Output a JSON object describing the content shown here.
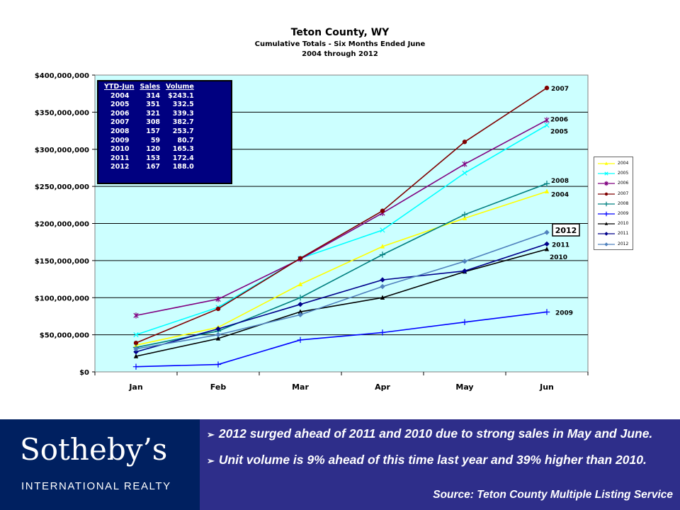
{
  "chart_data": {
    "type": "line",
    "title": "Teton County, WY",
    "subtitle": "Cumulative Totals - Six Months Ended June",
    "subtitle2": "2004 through 2012",
    "categories": [
      "Jan",
      "Feb",
      "Mar",
      "Apr",
      "May",
      "Jun"
    ],
    "ylim": [
      0,
      400000000
    ],
    "y_ticks": [
      "$0",
      "$50,000,000",
      "$100,000,000",
      "$150,000,000",
      "$200,000,000",
      "$250,000,000",
      "$300,000,000",
      "$350,000,000",
      "$400,000,000"
    ],
    "grid": true,
    "legend_position": "right",
    "series": [
      {
        "name": "2004",
        "color": "#ffff00",
        "marker": "triangle",
        "values": [
          36000000,
          60000000,
          118000000,
          169000000,
          207000000,
          243100000
        ]
      },
      {
        "name": "2005",
        "color": "#00ffff",
        "marker": "x",
        "values": [
          50000000,
          87000000,
          153000000,
          191000000,
          268000000,
          332500000
        ]
      },
      {
        "name": "2006",
        "color": "#800080",
        "marker": "star",
        "values": [
          76000000,
          98000000,
          152000000,
          214000000,
          280000000,
          339300000
        ]
      },
      {
        "name": "2007",
        "color": "#800000",
        "marker": "circle",
        "values": [
          39000000,
          85000000,
          153000000,
          217000000,
          310000000,
          382700000
        ]
      },
      {
        "name": "2008",
        "color": "#008080",
        "marker": "plus",
        "values": [
          33000000,
          55000000,
          100000000,
          158000000,
          212000000,
          253700000
        ]
      },
      {
        "name": "2009",
        "color": "#0000ff",
        "marker": "plus",
        "values": [
          7000000,
          10000000,
          43000000,
          53000000,
          67000000,
          80700000
        ]
      },
      {
        "name": "2010",
        "color": "#000000",
        "marker": "triangle",
        "values": [
          21000000,
          45000000,
          81000000,
          100000000,
          135000000,
          165300000
        ]
      },
      {
        "name": "2011",
        "color": "#00008b",
        "marker": "diamond",
        "values": [
          27000000,
          58000000,
          91000000,
          124000000,
          136000000,
          172400000
        ]
      },
      {
        "name": "2012",
        "color": "#4f81bd",
        "marker": "diamond",
        "values": [
          31000000,
          50000000,
          77000000,
          115000000,
          149000000,
          188000000
        ]
      }
    ],
    "end_labels": [
      {
        "text": "2007",
        "series": "2007"
      },
      {
        "text": "2006",
        "series": "2006"
      },
      {
        "text": "2005",
        "series": "2005"
      },
      {
        "text": "2008",
        "series": "2008"
      },
      {
        "text": "2004",
        "series": "2004"
      },
      {
        "text": "2012",
        "series": "2012",
        "boxed": true
      },
      {
        "text": "2011",
        "series": "2011"
      },
      {
        "text": "2010",
        "series": "2010"
      },
      {
        "text": "2009",
        "series": "2009"
      }
    ]
  },
  "summary_table": {
    "headers": [
      "YTD-Jun",
      "Sales",
      "Volume"
    ],
    "rows": [
      [
        "2004",
        "314",
        "$243.1"
      ],
      [
        "2005",
        "351",
        "332.5"
      ],
      [
        "2006",
        "321",
        "339.3"
      ],
      [
        "2007",
        "308",
        "382.7"
      ],
      [
        "2008",
        "157",
        "253.7"
      ],
      [
        "2009",
        "59",
        "80.7"
      ],
      [
        "2010",
        "120",
        "165.3"
      ],
      [
        "2011",
        "153",
        "172.4"
      ],
      [
        "2012",
        "167",
        "188.0"
      ]
    ]
  },
  "footer": {
    "brand_name": "Sotheby’s",
    "brand_sub": "INTERNATIONAL REALTY",
    "bullet_icon": "arrow-bullet-icon",
    "bullets": [
      "2012 surged ahead of 2011 and 2010 due to strong sales in May and June.",
      "Unit volume is 9% ahead of  this time last year and 39% higher than 2010."
    ],
    "source": "Source: Teton County Multiple Listing Service"
  }
}
